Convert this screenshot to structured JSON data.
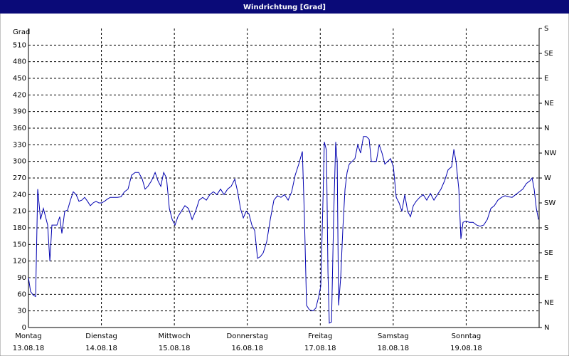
{
  "chart_data": {
    "type": "line",
    "title": "Windrichtung [Grad]",
    "ylabel": "Grad",
    "xlim": [
      0,
      7
    ],
    "xticks": [
      {
        "value": 0,
        "label": "Montag"
      },
      {
        "value": 1,
        "label": "Dienstag"
      },
      {
        "value": 2,
        "label": "Mittwoch"
      },
      {
        "value": 3,
        "label": "Donnerstag"
      },
      {
        "value": 4,
        "label": "Freitag"
      },
      {
        "value": 5,
        "label": "Samstag"
      },
      {
        "value": 6,
        "label": "Sonntag"
      }
    ],
    "xtick_dates": [
      "13.08.18",
      "14.08.18",
      "15.08.18",
      "16.08.18",
      "17.08.18",
      "18.08.18",
      "19.08.18"
    ],
    "ylim": [
      0,
      540
    ],
    "yticks": [
      0,
      30,
      60,
      90,
      120,
      150,
      180,
      210,
      240,
      270,
      300,
      330,
      360,
      390,
      420,
      450,
      480,
      510
    ],
    "y2lim": [
      0,
      540
    ],
    "y2ticks": [
      {
        "value": 0,
        "label": "N"
      },
      {
        "value": 45,
        "label": "NE"
      },
      {
        "value": 90,
        "label": "E"
      },
      {
        "value": 135,
        "label": "SE"
      },
      {
        "value": 180,
        "label": "S"
      },
      {
        "value": 225,
        "label": "SW"
      },
      {
        "value": 270,
        "label": "W"
      },
      {
        "value": 315,
        "label": "NW"
      },
      {
        "value": 360,
        "label": "N"
      },
      {
        "value": 405,
        "label": "NE"
      },
      {
        "value": 450,
        "label": "E"
      },
      {
        "value": 495,
        "label": "SE"
      },
      {
        "value": 540,
        "label": "S"
      }
    ],
    "grid": true,
    "series": [
      {
        "color": "#0000b0",
        "x": [
          0,
          0.029,
          0.068,
          0.098,
          0.127,
          0.166,
          0.205,
          0.234,
          0.263,
          0.293,
          0.322,
          0.361,
          0.39,
          0.429,
          0.458,
          0.497,
          0.536,
          0.575,
          0.614,
          0.653,
          0.692,
          0.731,
          0.77,
          0.809,
          0.848,
          0.887,
          0.926,
          0.965,
          1.004,
          1.043,
          1.082,
          1.121,
          1.17,
          1.219,
          1.268,
          1.316,
          1.365,
          1.414,
          1.463,
          1.511,
          1.56,
          1.599,
          1.638,
          1.687,
          1.736,
          1.775,
          1.814,
          1.853,
          1.892,
          1.931,
          1.97,
          2.009,
          2.048,
          2.096,
          2.145,
          2.194,
          2.243,
          2.291,
          2.34,
          2.389,
          2.438,
          2.486,
          2.535,
          2.584,
          2.633,
          2.681,
          2.73,
          2.779,
          2.828,
          2.867,
          2.906,
          2.945,
          2.984,
          3.023,
          3.062,
          3.101,
          3.14,
          3.179,
          3.218,
          3.266,
          3.315,
          3.364,
          3.413,
          3.461,
          3.51,
          3.559,
          3.608,
          3.656,
          3.705,
          3.754,
          3.783,
          3.812,
          3.851,
          3.9,
          3.939,
          3.978,
          4.007,
          4.037,
          4.056,
          4.085,
          4.105,
          4.124,
          4.154,
          4.183,
          4.212,
          4.232,
          4.251,
          4.28,
          4.31,
          4.339,
          4.368,
          4.397,
          4.436,
          4.475,
          4.514,
          4.553,
          4.592,
          4.631,
          4.67,
          4.7,
          4.729,
          4.768,
          4.807,
          4.846,
          4.885,
          4.924,
          4.963,
          5.002,
          5.041,
          5.08,
          5.119,
          5.158,
          5.197,
          5.236,
          5.275,
          5.314,
          5.363,
          5.411,
          5.46,
          5.509,
          5.558,
          5.606,
          5.655,
          5.704,
          5.753,
          5.801,
          5.831,
          5.86,
          5.899,
          5.928,
          5.957,
          5.996,
          6.045,
          6.094,
          6.143,
          6.191,
          6.24,
          6.289,
          6.338,
          6.386,
          6.435,
          6.484,
          6.533,
          6.581,
          6.63,
          6.679,
          6.728,
          6.776,
          6.825,
          6.874,
          6.903,
          6.932,
          6.962,
          6.991
        ],
        "values": [
          90,
          65,
          58,
          56,
          250,
          195,
          215,
          200,
          185,
          120,
          185,
          185,
          185,
          200,
          170,
          210,
          212,
          230,
          245,
          240,
          228,
          230,
          235,
          228,
          220,
          225,
          228,
          225,
          225,
          228,
          232,
          235,
          235,
          235,
          236,
          245,
          250,
          275,
          280,
          280,
          268,
          250,
          255,
          265,
          280,
          265,
          255,
          280,
          270,
          215,
          195,
          185,
          200,
          210,
          220,
          215,
          195,
          210,
          230,
          235,
          230,
          240,
          245,
          240,
          250,
          240,
          250,
          255,
          268,
          245,
          215,
          198,
          210,
          205,
          185,
          175,
          125,
          128,
          135,
          155,
          195,
          230,
          238,
          235,
          240,
          230,
          245,
          275,
          295,
          318,
          200,
          40,
          32,
          30,
          35,
          55,
          75,
          230,
          335,
          320,
          100,
          8,
          10,
          200,
          335,
          300,
          40,
          90,
          180,
          250,
          280,
          295,
          300,
          305,
          330,
          315,
          345,
          345,
          340,
          300,
          300,
          300,
          330,
          315,
          295,
          300,
          305,
          290,
          235,
          225,
          210,
          240,
          210,
          200,
          220,
          228,
          235,
          240,
          230,
          242,
          230,
          240,
          250,
          265,
          285,
          290,
          322,
          300,
          250,
          160,
          190,
          192,
          190,
          190,
          185,
          183,
          185,
          195,
          215,
          220,
          230,
          235,
          238,
          236,
          235,
          240,
          245,
          250,
          260,
          265,
          270,
          250,
          215,
          195
        ]
      }
    ]
  }
}
